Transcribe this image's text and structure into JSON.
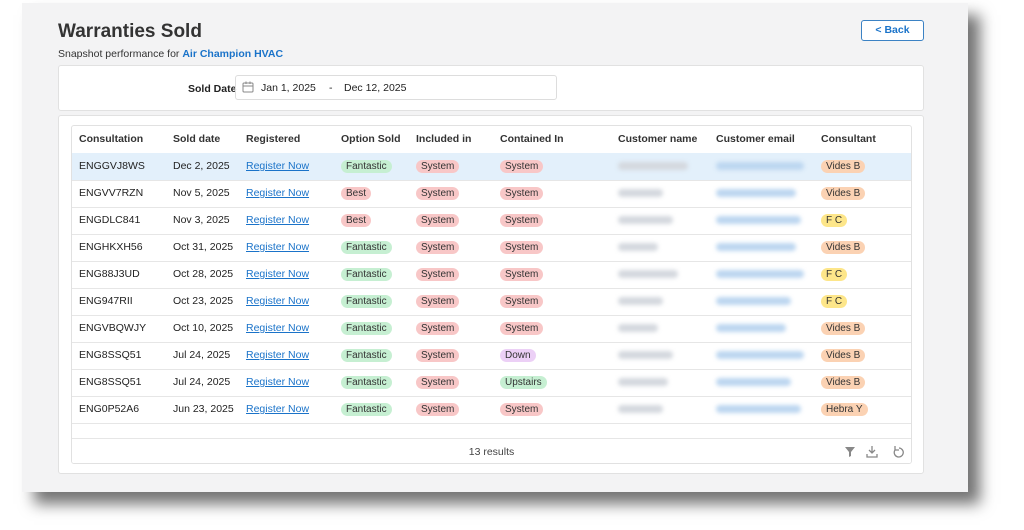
{
  "header": {
    "title": "Warranties Sold",
    "subtitle": "Snapshot performance for",
    "company": "Air Champion HVAC",
    "back_button": "< Back"
  },
  "filter": {
    "label": "Sold Date",
    "start": "Jan 1, 2025",
    "separator": "-",
    "end": "Dec 12, 2025"
  },
  "table": {
    "columns": [
      "Consultation",
      "Sold date",
      "Registered",
      "Option Sold",
      "Included in",
      "Contained In",
      "Customer name",
      "Customer email",
      "Consultant"
    ],
    "selected_row_color": "#e3f0fb",
    "rows": [
      {
        "consultation": "ENGGVJ8WS",
        "sold_date": "Dec 2, 2025",
        "registered": "Register Now",
        "option_sold": {
          "text": "Fantastic",
          "color": "#c6efd2"
        },
        "included_in": {
          "text": "System",
          "color": "#f8c7c7"
        },
        "contained_in": {
          "text": "System",
          "color": "#f8c7c7"
        },
        "consultant": {
          "text": "Vides B",
          "color": "#fbd2b3"
        },
        "selected": true
      },
      {
        "consultation": "ENGVV7RZN",
        "sold_date": "Nov 5, 2025",
        "registered": "Register Now",
        "option_sold": {
          "text": "Best",
          "color": "#f8c7c7"
        },
        "included_in": {
          "text": "System",
          "color": "#f8c7c7"
        },
        "contained_in": {
          "text": "System",
          "color": "#f8c7c7"
        },
        "consultant": {
          "text": "Vides B",
          "color": "#fbd2b3"
        }
      },
      {
        "consultation": "ENGDLC841",
        "sold_date": "Nov 3, 2025",
        "registered": "Register Now",
        "option_sold": {
          "text": "Best",
          "color": "#f8c7c7"
        },
        "included_in": {
          "text": "System",
          "color": "#f8c7c7"
        },
        "contained_in": {
          "text": "System",
          "color": "#f8c7c7"
        },
        "consultant": {
          "text": "F C",
          "color": "#fde68a"
        }
      },
      {
        "consultation": "ENGHKXH56",
        "sold_date": "Oct 31, 2025",
        "registered": "Register Now",
        "option_sold": {
          "text": "Fantastic",
          "color": "#c6efd2"
        },
        "included_in": {
          "text": "System",
          "color": "#f8c7c7"
        },
        "contained_in": {
          "text": "System",
          "color": "#f8c7c7"
        },
        "consultant": {
          "text": "Vides B",
          "color": "#fbd2b3"
        }
      },
      {
        "consultation": "ENG88J3UD",
        "sold_date": "Oct 28, 2025",
        "registered": "Register Now",
        "option_sold": {
          "text": "Fantastic",
          "color": "#c6efd2"
        },
        "included_in": {
          "text": "System",
          "color": "#f8c7c7"
        },
        "contained_in": {
          "text": "System",
          "color": "#f8c7c7"
        },
        "consultant": {
          "text": "F C",
          "color": "#fde68a"
        }
      },
      {
        "consultation": "ENG947RII",
        "sold_date": "Oct 23, 2025",
        "registered": "Register Now",
        "option_sold": {
          "text": "Fantastic",
          "color": "#c6efd2"
        },
        "included_in": {
          "text": "System",
          "color": "#f8c7c7"
        },
        "contained_in": {
          "text": "System",
          "color": "#f8c7c7"
        },
        "consultant": {
          "text": "F C",
          "color": "#fde68a"
        }
      },
      {
        "consultation": "ENGVBQWJY",
        "sold_date": "Oct 10, 2025",
        "registered": "Register Now",
        "option_sold": {
          "text": "Fantastic",
          "color": "#c6efd2"
        },
        "included_in": {
          "text": "System",
          "color": "#f8c7c7"
        },
        "contained_in": {
          "text": "System",
          "color": "#f8c7c7"
        },
        "consultant": {
          "text": "Vides B",
          "color": "#fbd2b3"
        }
      },
      {
        "consultation": "ENG8SSQ51",
        "sold_date": "Jul 24, 2025",
        "registered": "Register Now",
        "option_sold": {
          "text": "Fantastic",
          "color": "#c6efd2"
        },
        "included_in": {
          "text": "System",
          "color": "#f8c7c7"
        },
        "contained_in": {
          "text": "Down",
          "color": "#ecd0f6"
        },
        "consultant": {
          "text": "Vides B",
          "color": "#fbd2b3"
        }
      },
      {
        "consultation": "ENG8SSQ51",
        "sold_date": "Jul 24, 2025",
        "registered": "Register Now",
        "option_sold": {
          "text": "Fantastic",
          "color": "#c6efd2"
        },
        "included_in": {
          "text": "System",
          "color": "#f8c7c7"
        },
        "contained_in": {
          "text": "Upstairs",
          "color": "#c6efd2"
        },
        "consultant": {
          "text": "Vides B",
          "color": "#fbd2b3"
        }
      },
      {
        "consultation": "ENG0P52A6",
        "sold_date": "Jun 23, 2025",
        "registered": "Register Now",
        "option_sold": {
          "text": "Fantastic",
          "color": "#c6efd2"
        },
        "included_in": {
          "text": "System",
          "color": "#f8c7c7"
        },
        "contained_in": {
          "text": "System",
          "color": "#f8c7c7"
        },
        "consultant": {
          "text": "Hebra Y",
          "color": "#fbd2b3"
        }
      }
    ],
    "footer": "13 results"
  }
}
